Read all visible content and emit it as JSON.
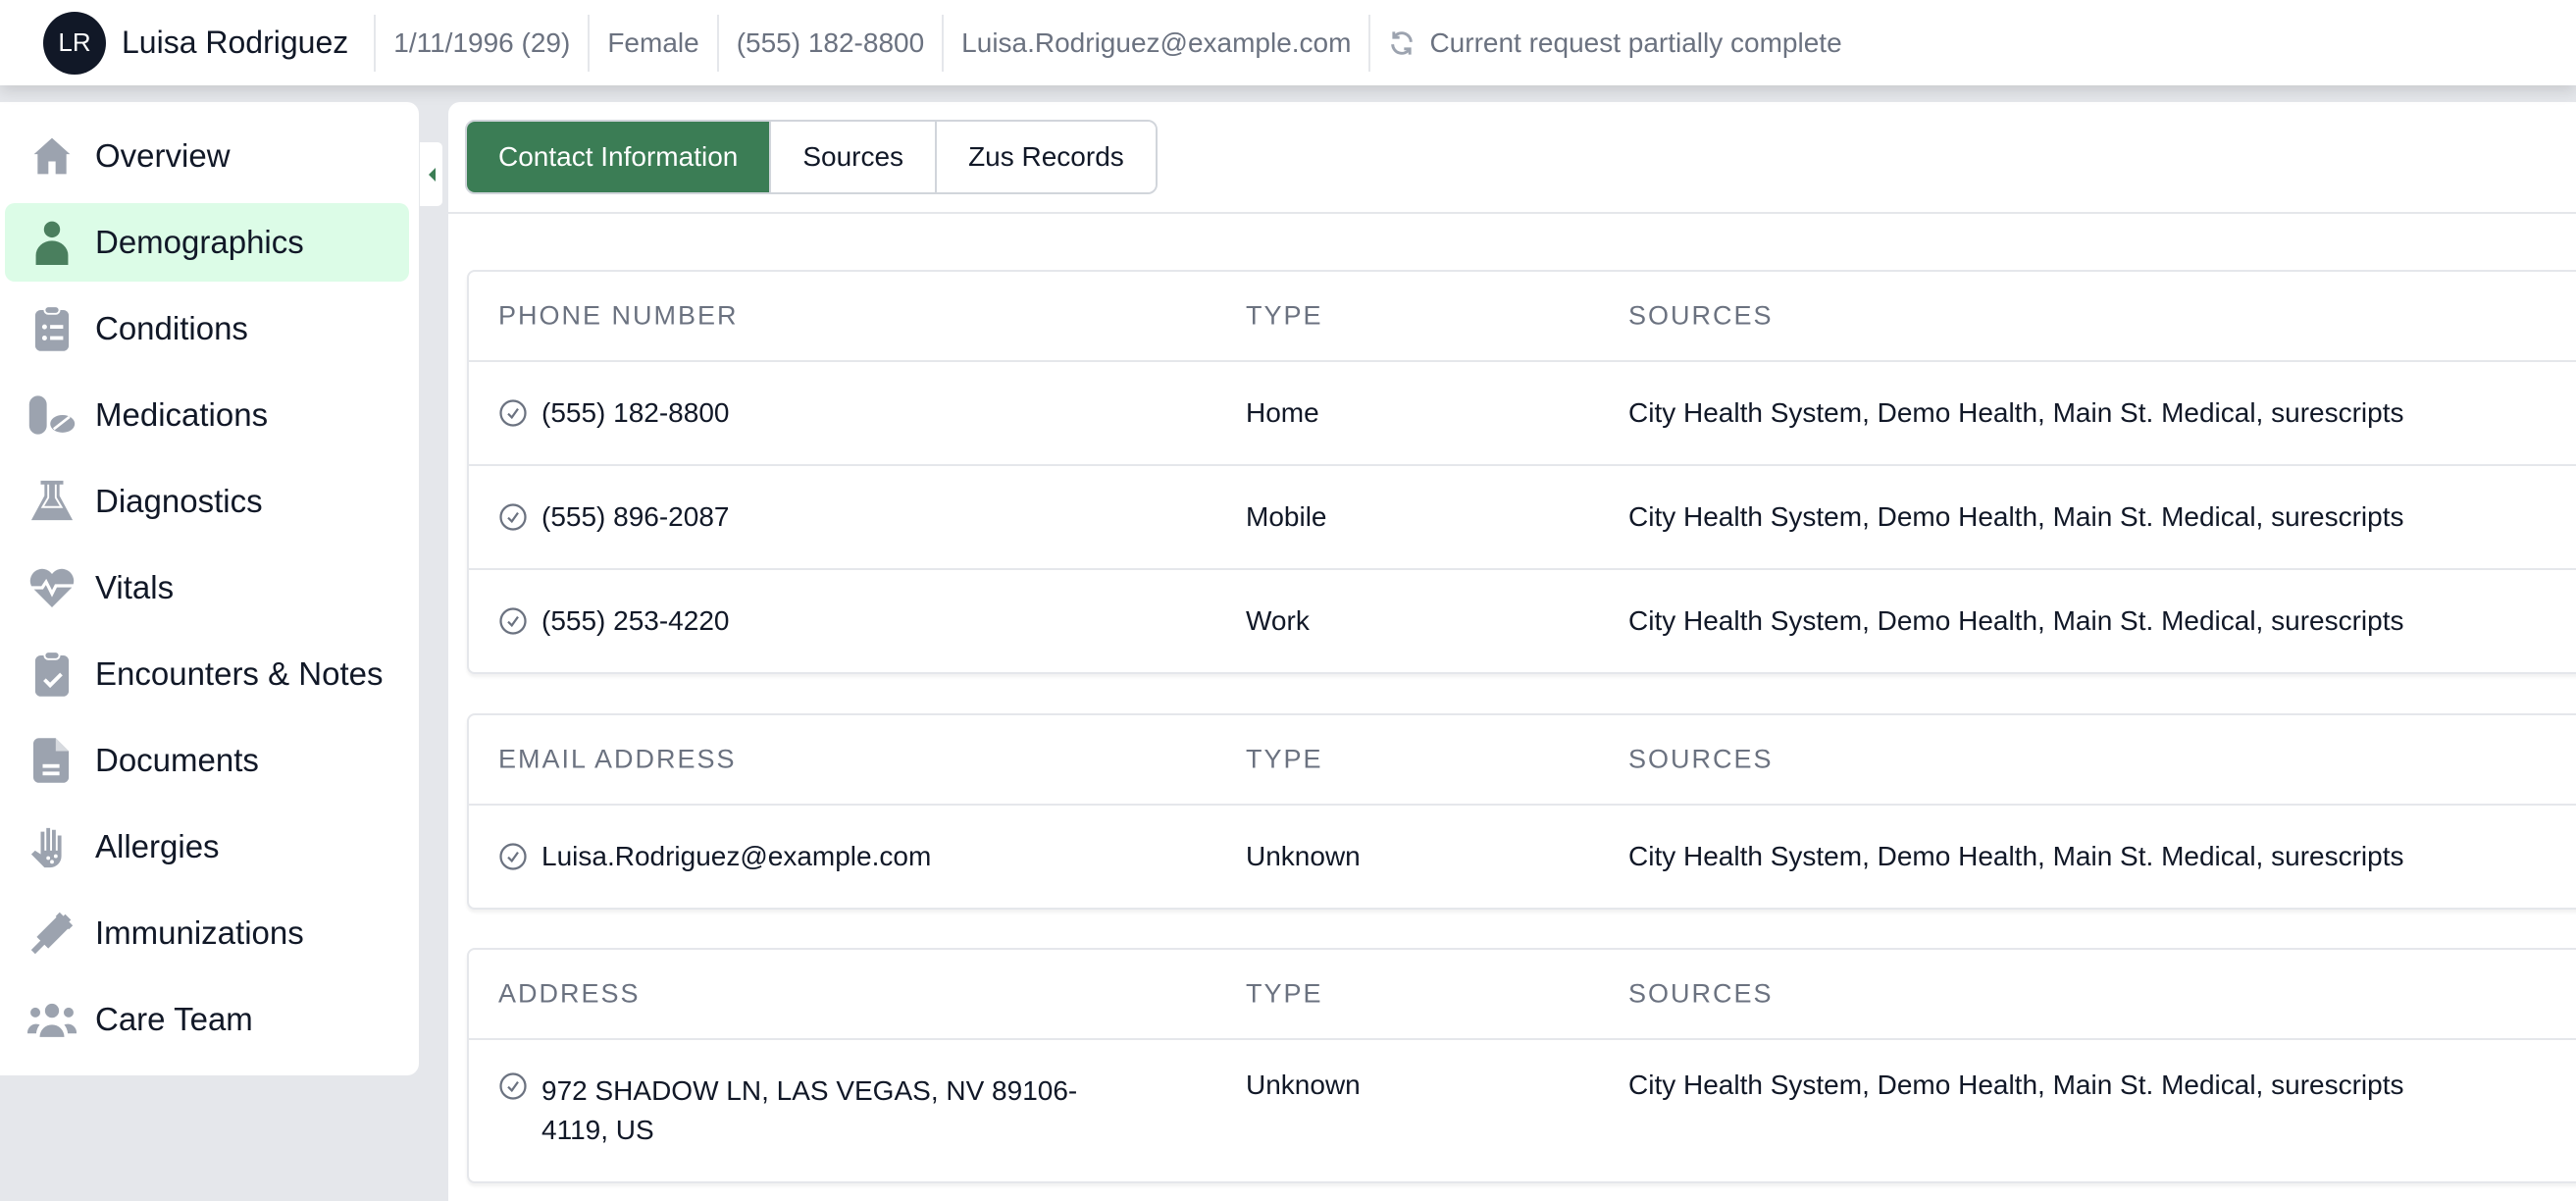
{
  "header": {
    "initials": "LR",
    "name": "Luisa Rodriguez",
    "dob": "1/11/1996 (29)",
    "gender": "Female",
    "phone": "(555) 182-8800",
    "email": "Luisa.Rodriguez@example.com",
    "status": "Current request partially complete",
    "status_icon": "refresh-icon"
  },
  "sidebar": {
    "active": "Demographics",
    "items": [
      {
        "label": "Overview",
        "icon": "home-icon"
      },
      {
        "label": "Demographics",
        "icon": "user-icon"
      },
      {
        "label": "Conditions",
        "icon": "clipboard-list-icon"
      },
      {
        "label": "Medications",
        "icon": "pills-icon"
      },
      {
        "label": "Diagnostics",
        "icon": "flask-icon"
      },
      {
        "label": "Vitals",
        "icon": "heart-pulse-icon"
      },
      {
        "label": "Encounters & Notes",
        "icon": "clipboard-check-icon"
      },
      {
        "label": "Documents",
        "icon": "document-icon"
      },
      {
        "label": "Allergies",
        "icon": "hand-icon"
      },
      {
        "label": "Immunizations",
        "icon": "syringe-icon"
      },
      {
        "label": "Care Team",
        "icon": "users-icon"
      }
    ]
  },
  "tabs": [
    {
      "label": "Contact Information",
      "active": true
    },
    {
      "label": "Sources"
    },
    {
      "label": "Zus Records"
    }
  ],
  "colors": {
    "accent": "#3b7d55",
    "active_bg": "#dcfce7"
  },
  "phones": {
    "headers": [
      "PHONE NUMBER",
      "TYPE",
      "SOURCES"
    ],
    "rows": [
      [
        "(555) 182-8800",
        "Home",
        "City Health System, Demo Health, Main St. Medical, surescripts"
      ],
      [
        "(555) 896-2087",
        "Mobile",
        "City Health System, Demo Health, Main St. Medical, surescripts"
      ],
      [
        "(555) 253-4220",
        "Work",
        "City Health System, Demo Health, Main St. Medical, surescripts"
      ]
    ]
  },
  "emails": {
    "headers": [
      "EMAIL ADDRESS",
      "TYPE",
      "SOURCES"
    ],
    "rows": [
      [
        "Luisa.Rodriguez@example.com",
        "Unknown",
        "City Health System, Demo Health, Main St. Medical, surescripts"
      ]
    ]
  },
  "addresses": {
    "headers": [
      "ADDRESS",
      "TYPE",
      "SOURCES"
    ],
    "rows": [
      [
        "972 SHADOW LN, LAS VEGAS, NV 89106-4119, US",
        "Unknown",
        "City Health System, Demo Health, Main St. Medical, surescripts"
      ]
    ]
  }
}
